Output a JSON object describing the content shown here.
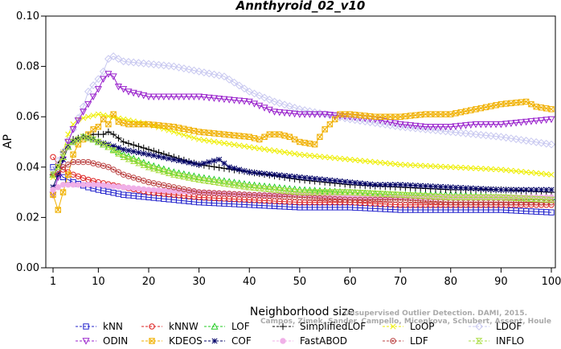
{
  "chart_data": {
    "type": "line",
    "title": "Annthyroid_02_v10",
    "xlabel": "Neighborhood size",
    "ylabel": "AP",
    "xlim": [
      1,
      100
    ],
    "ylim": [
      0.0,
      0.1
    ],
    "xticks": [
      "1",
      "10",
      "20",
      "30",
      "40",
      "50",
      "60",
      "70",
      "80",
      "90",
      "100"
    ],
    "yticks": [
      "0.00",
      "0.02",
      "0.04",
      "0.06",
      "0.08",
      "0.10"
    ],
    "grid": false,
    "legend_position": "bottom",
    "watermark": [
      "Unsupervised Outlier Detection. DAMI, 2015.",
      "Campos, Zimek, Sander, Campello, Micenkova, Schubert, Assent, Houle"
    ],
    "series": [
      {
        "name": "kNN",
        "color": "#2222cc",
        "marker": "square",
        "points": [
          [
            1,
            0.04
          ],
          [
            2,
            0.038
          ],
          [
            3,
            0.036
          ],
          [
            5,
            0.034
          ],
          [
            8,
            0.032
          ],
          [
            10,
            0.031
          ],
          [
            15,
            0.029
          ],
          [
            20,
            0.028
          ],
          [
            30,
            0.026
          ],
          [
            40,
            0.025
          ],
          [
            50,
            0.024
          ],
          [
            60,
            0.024
          ],
          [
            70,
            0.023
          ],
          [
            80,
            0.023
          ],
          [
            90,
            0.023
          ],
          [
            100,
            0.022
          ]
        ]
      },
      {
        "name": "kNNW",
        "color": "#dd2222",
        "marker": "circle",
        "points": [
          [
            1,
            0.044
          ],
          [
            2,
            0.041
          ],
          [
            3,
            0.039
          ],
          [
            5,
            0.037
          ],
          [
            8,
            0.035
          ],
          [
            10,
            0.034
          ],
          [
            15,
            0.032
          ],
          [
            20,
            0.03
          ],
          [
            30,
            0.028
          ],
          [
            40,
            0.027
          ],
          [
            50,
            0.026
          ],
          [
            60,
            0.026
          ],
          [
            70,
            0.025
          ],
          [
            80,
            0.025
          ],
          [
            90,
            0.025
          ],
          [
            100,
            0.025
          ]
        ]
      },
      {
        "name": "LOF",
        "color": "#22cc22",
        "marker": "triangle-up",
        "points": [
          [
            1,
            0.037
          ],
          [
            2,
            0.04
          ],
          [
            3,
            0.044
          ],
          [
            4,
            0.048
          ],
          [
            5,
            0.05
          ],
          [
            7,
            0.052
          ],
          [
            9,
            0.051
          ],
          [
            10,
            0.05
          ],
          [
            12,
            0.048
          ],
          [
            15,
            0.045
          ],
          [
            20,
            0.041
          ],
          [
            25,
            0.038
          ],
          [
            30,
            0.036
          ],
          [
            40,
            0.033
          ],
          [
            50,
            0.031
          ],
          [
            60,
            0.03
          ],
          [
            70,
            0.029
          ],
          [
            80,
            0.029
          ],
          [
            90,
            0.028
          ],
          [
            100,
            0.028
          ]
        ]
      },
      {
        "name": "SimplifiedLOF",
        "color": "#000000",
        "marker": "plus",
        "points": [
          [
            1,
            0.037
          ],
          [
            2,
            0.041
          ],
          [
            3,
            0.046
          ],
          [
            4,
            0.049
          ],
          [
            5,
            0.051
          ],
          [
            7,
            0.052
          ],
          [
            9,
            0.053
          ],
          [
            11,
            0.053
          ],
          [
            12,
            0.054
          ],
          [
            13,
            0.053
          ],
          [
            15,
            0.05
          ],
          [
            20,
            0.047
          ],
          [
            25,
            0.044
          ],
          [
            30,
            0.041
          ],
          [
            40,
            0.038
          ],
          [
            50,
            0.035
          ],
          [
            60,
            0.033
          ],
          [
            70,
            0.032
          ],
          [
            80,
            0.031
          ],
          [
            90,
            0.031
          ],
          [
            100,
            0.03
          ]
        ]
      },
      {
        "name": "LoOP",
        "color": "#eeee00",
        "marker": "x",
        "points": [
          [
            1,
            0.036
          ],
          [
            2,
            0.04
          ],
          [
            3,
            0.046
          ],
          [
            4,
            0.053
          ],
          [
            5,
            0.057
          ],
          [
            6,
            0.059
          ],
          [
            8,
            0.06
          ],
          [
            10,
            0.061
          ],
          [
            15,
            0.059
          ],
          [
            20,
            0.057
          ],
          [
            25,
            0.054
          ],
          [
            30,
            0.051
          ],
          [
            40,
            0.048
          ],
          [
            50,
            0.045
          ],
          [
            60,
            0.043
          ],
          [
            70,
            0.041
          ],
          [
            80,
            0.04
          ],
          [
            90,
            0.039
          ],
          [
            100,
            0.037
          ]
        ]
      },
      {
        "name": "LDOF",
        "color": "#c8c8f0",
        "marker": "diamond",
        "points": [
          [
            1,
            0.039
          ],
          [
            3,
            0.046
          ],
          [
            5,
            0.055
          ],
          [
            7,
            0.064
          ],
          [
            8,
            0.07
          ],
          [
            10,
            0.075
          ],
          [
            11,
            0.078
          ],
          [
            12,
            0.083
          ],
          [
            13,
            0.084
          ],
          [
            15,
            0.082
          ],
          [
            20,
            0.081
          ],
          [
            25,
            0.08
          ],
          [
            30,
            0.078
          ],
          [
            35,
            0.076
          ],
          [
            40,
            0.07
          ],
          [
            45,
            0.066
          ],
          [
            50,
            0.063
          ],
          [
            60,
            0.059
          ],
          [
            70,
            0.056
          ],
          [
            80,
            0.054
          ],
          [
            90,
            0.052
          ],
          [
            100,
            0.049
          ]
        ]
      },
      {
        "name": "ODIN",
        "color": "#9922cc",
        "marker": "triangle-down",
        "points": [
          [
            1,
            0.029
          ],
          [
            2,
            0.036
          ],
          [
            3,
            0.043
          ],
          [
            4,
            0.05
          ],
          [
            5,
            0.055
          ],
          [
            7,
            0.062
          ],
          [
            8,
            0.065
          ],
          [
            10,
            0.071
          ],
          [
            11,
            0.075
          ],
          [
            12,
            0.077
          ],
          [
            13,
            0.076
          ],
          [
            14,
            0.072
          ],
          [
            16,
            0.07
          ],
          [
            20,
            0.068
          ],
          [
            25,
            0.068
          ],
          [
            30,
            0.068
          ],
          [
            35,
            0.067
          ],
          [
            40,
            0.066
          ],
          [
            45,
            0.062
          ],
          [
            50,
            0.061
          ],
          [
            55,
            0.061
          ],
          [
            60,
            0.06
          ],
          [
            65,
            0.059
          ],
          [
            70,
            0.057
          ],
          [
            75,
            0.056
          ],
          [
            80,
            0.056
          ],
          [
            85,
            0.057
          ],
          [
            90,
            0.057
          ],
          [
            95,
            0.058
          ],
          [
            100,
            0.059
          ]
        ]
      },
      {
        "name": "KDEOS",
        "color": "#f0b000",
        "marker": "square-x",
        "points": [
          [
            1,
            0.029
          ],
          [
            2,
            0.023
          ],
          [
            3,
            0.03
          ],
          [
            4,
            0.037
          ],
          [
            5,
            0.045
          ],
          [
            6,
            0.049
          ],
          [
            7,
            0.051
          ],
          [
            8,
            0.053
          ],
          [
            9,
            0.055
          ],
          [
            10,
            0.056
          ],
          [
            11,
            0.059
          ],
          [
            12,
            0.057
          ],
          [
            13,
            0.061
          ],
          [
            14,
            0.058
          ],
          [
            16,
            0.057
          ],
          [
            20,
            0.057
          ],
          [
            25,
            0.056
          ],
          [
            30,
            0.054
          ],
          [
            35,
            0.053
          ],
          [
            40,
            0.052
          ],
          [
            42,
            0.051
          ],
          [
            44,
            0.053
          ],
          [
            46,
            0.053
          ],
          [
            48,
            0.052
          ],
          [
            50,
            0.05
          ],
          [
            53,
            0.049
          ],
          [
            55,
            0.055
          ],
          [
            57,
            0.059
          ],
          [
            58,
            0.061
          ],
          [
            60,
            0.061
          ],
          [
            65,
            0.06
          ],
          [
            70,
            0.06
          ],
          [
            75,
            0.061
          ],
          [
            80,
            0.061
          ],
          [
            85,
            0.063
          ],
          [
            90,
            0.065
          ],
          [
            95,
            0.066
          ],
          [
            97,
            0.064
          ],
          [
            100,
            0.063
          ]
        ]
      },
      {
        "name": "COF",
        "color": "#000066",
        "marker": "star",
        "points": [
          [
            1,
            0.032
          ],
          [
            2,
            0.037
          ],
          [
            3,
            0.043
          ],
          [
            4,
            0.048
          ],
          [
            5,
            0.05
          ],
          [
            7,
            0.052
          ],
          [
            9,
            0.051
          ],
          [
            10,
            0.05
          ],
          [
            12,
            0.049
          ],
          [
            15,
            0.047
          ],
          [
            20,
            0.045
          ],
          [
            25,
            0.043
          ],
          [
            30,
            0.041
          ],
          [
            34,
            0.043
          ],
          [
            36,
            0.04
          ],
          [
            40,
            0.038
          ],
          [
            45,
            0.037
          ],
          [
            50,
            0.036
          ],
          [
            55,
            0.035
          ],
          [
            60,
            0.034
          ],
          [
            65,
            0.033
          ],
          [
            70,
            0.033
          ],
          [
            80,
            0.032
          ],
          [
            90,
            0.031
          ],
          [
            100,
            0.031
          ]
        ]
      },
      {
        "name": "FastABOD",
        "color": "#f0b0e8",
        "marker": "circle-filled",
        "points": [
          [
            1,
            0.031
          ],
          [
            3,
            0.033
          ],
          [
            5,
            0.033
          ],
          [
            8,
            0.033
          ],
          [
            10,
            0.033
          ],
          [
            15,
            0.032
          ],
          [
            20,
            0.031
          ],
          [
            30,
            0.03
          ],
          [
            40,
            0.029
          ],
          [
            50,
            0.029
          ],
          [
            60,
            0.028
          ],
          [
            70,
            0.028
          ],
          [
            80,
            0.028
          ],
          [
            90,
            0.028
          ],
          [
            100,
            0.028
          ]
        ]
      },
      {
        "name": "LDF",
        "color": "#bb4444",
        "marker": "circle-dot",
        "points": [
          [
            1,
            0.037
          ],
          [
            2,
            0.038
          ],
          [
            3,
            0.04
          ],
          [
            5,
            0.042
          ],
          [
            8,
            0.042
          ],
          [
            10,
            0.041
          ],
          [
            12,
            0.04
          ],
          [
            15,
            0.037
          ],
          [
            20,
            0.034
          ],
          [
            25,
            0.032
          ],
          [
            30,
            0.03
          ],
          [
            40,
            0.029
          ],
          [
            50,
            0.028
          ],
          [
            60,
            0.027
          ],
          [
            70,
            0.027
          ],
          [
            80,
            0.026
          ],
          [
            90,
            0.026
          ],
          [
            100,
            0.026
          ]
        ]
      },
      {
        "name": "INFLO",
        "color": "#aadd44",
        "marker": "hourglass",
        "points": [
          [
            1,
            0.037
          ],
          [
            2,
            0.04
          ],
          [
            3,
            0.044
          ],
          [
            4,
            0.048
          ],
          [
            5,
            0.05
          ],
          [
            7,
            0.052
          ],
          [
            9,
            0.051
          ],
          [
            10,
            0.05
          ],
          [
            12,
            0.048
          ],
          [
            15,
            0.044
          ],
          [
            20,
            0.04
          ],
          [
            25,
            0.037
          ],
          [
            30,
            0.035
          ],
          [
            40,
            0.032
          ],
          [
            50,
            0.03
          ],
          [
            60,
            0.03
          ],
          [
            70,
            0.029
          ],
          [
            80,
            0.028
          ],
          [
            90,
            0.028
          ],
          [
            100,
            0.027
          ]
        ]
      }
    ]
  }
}
